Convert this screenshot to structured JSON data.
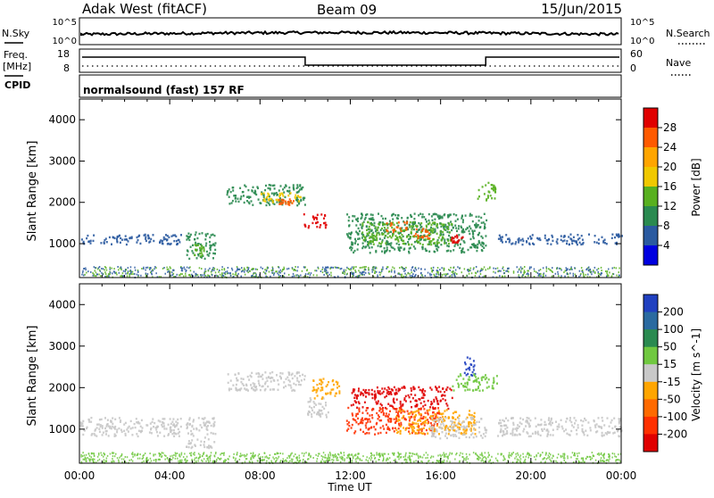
{
  "header": {
    "station": "Adak West (fitACF)",
    "beam": "Beam 09",
    "date": "15/Jun/2015"
  },
  "top_panels": {
    "nsky_label": "N.Sky",
    "nsky_ticks": [
      "10^5",
      "10^0"
    ],
    "nsearch_label": "N.Search",
    "nsearch_ticks": [
      "10^5",
      "10^0"
    ],
    "freq_label_line1": "Freq.",
    "freq_label_line2": "[MHz]",
    "freq_ticks": [
      "18",
      "8"
    ],
    "nave_label": "Nave",
    "nave_ticks": [
      "60",
      "0"
    ],
    "cpid_label": "CPID",
    "cpid_text": "normalsound (fast) 157 RF"
  },
  "chart_data": [
    {
      "type": "heatmap",
      "panel": "power",
      "ylabel": "Slant Range [km]",
      "xlabel": "Time UT",
      "yticks": [
        "4000",
        "3000",
        "2000",
        "1000"
      ],
      "ylim": [
        180,
        4500
      ],
      "xlim_hours": [
        0,
        24
      ],
      "xticks": [
        "00:00",
        "04:00",
        "08:00",
        "12:00",
        "16:00",
        "20:00",
        "00:00"
      ],
      "colorbar": {
        "label": "Power [dB]",
        "ticks": [
          "28",
          "24",
          "20",
          "16",
          "12",
          "8",
          "4"
        ],
        "colors": [
          "#e00000",
          "#ff5a00",
          "#ffa500",
          "#f0c800",
          "#58b020",
          "#2a8a50",
          "#2a5aa0",
          "#0000e0"
        ]
      },
      "blobs": [
        {
          "t0": 4.7,
          "t1": 6.0,
          "r0": 650,
          "r1": 1300,
          "color": "#2a8a50"
        },
        {
          "t0": 5.0,
          "t1": 5.5,
          "r0": 700,
          "r1": 1000,
          "color": "#58b020"
        },
        {
          "t0": 6.5,
          "t1": 10.0,
          "r0": 1950,
          "r1": 2450,
          "color": "#2a8a50"
        },
        {
          "t0": 8.0,
          "t1": 9.8,
          "r0": 2000,
          "r1": 2250,
          "color": "#f0c800"
        },
        {
          "t0": 8.8,
          "t1": 9.5,
          "r0": 1950,
          "r1": 2100,
          "color": "#ff5a00"
        },
        {
          "t0": 9.9,
          "t1": 10.9,
          "r0": 1400,
          "r1": 1750,
          "color": "#e00000"
        },
        {
          "t0": 11.8,
          "t1": 18.0,
          "r0": 800,
          "r1": 1750,
          "color": "#2a8a50"
        },
        {
          "t0": 12.5,
          "t1": 16.5,
          "r0": 1000,
          "r1": 1550,
          "color": "#58b020"
        },
        {
          "t0": 13.5,
          "t1": 14.5,
          "r0": 1300,
          "r1": 1550,
          "color": "#ff5a00"
        },
        {
          "t0": 14.8,
          "t1": 15.5,
          "r0": 1150,
          "r1": 1400,
          "color": "#ff5a00"
        },
        {
          "t0": 16.4,
          "t1": 17.0,
          "r0": 1050,
          "r1": 1250,
          "color": "#e00000"
        },
        {
          "t0": 17.6,
          "t1": 18.4,
          "r0": 2050,
          "r1": 2500,
          "color": "#58b020"
        },
        {
          "t0": 0.0,
          "t1": 4.5,
          "r0": 1000,
          "r1": 1250,
          "color": "#2a5aa0"
        },
        {
          "t0": 18.5,
          "t1": 24.0,
          "r0": 1000,
          "r1": 1250,
          "color": "#2a5aa0"
        }
      ]
    },
    {
      "type": "heatmap",
      "panel": "velocity",
      "ylabel": "Slant Range [km]",
      "xlabel": "Time UT",
      "yticks": [
        "4000",
        "3000",
        "2000",
        "1000"
      ],
      "ylim": [
        180,
        4500
      ],
      "xlim_hours": [
        0,
        24
      ],
      "xticks": [
        "00:00",
        "04:00",
        "08:00",
        "12:00",
        "16:00",
        "20:00",
        "00:00"
      ],
      "colorbar": {
        "label": "Velocity [m s^-1]",
        "ticks": [
          "200",
          "100",
          "50",
          "15",
          "-15",
          "-50",
          "-100",
          "-200"
        ],
        "colors": [
          "#2040c0",
          "#2a6aa0",
          "#2a8a50",
          "#70c840",
          "#c8c8c8",
          "#ffa500",
          "#ff6a00",
          "#ff3000",
          "#e00000"
        ]
      },
      "blobs": [
        {
          "t0": 0.0,
          "t1": 4.5,
          "r0": 850,
          "r1": 1300,
          "color": "#c8c8c8"
        },
        {
          "t0": 4.7,
          "t1": 6.0,
          "r0": 550,
          "r1": 1300,
          "color": "#c8c8c8"
        },
        {
          "t0": 6.5,
          "t1": 10.0,
          "r0": 1950,
          "r1": 2400,
          "color": "#c8c8c8"
        },
        {
          "t0": 10.0,
          "t1": 11.0,
          "r0": 1300,
          "r1": 1800,
          "color": "#c8c8c8"
        },
        {
          "t0": 10.3,
          "t1": 11.5,
          "r0": 1750,
          "r1": 2250,
          "color": "#ffa500"
        },
        {
          "t0": 12.0,
          "t1": 16.5,
          "r0": 1500,
          "r1": 2050,
          "color": "#e00000"
        },
        {
          "t0": 11.8,
          "t1": 16.0,
          "r0": 900,
          "r1": 1550,
          "color": "#ff3000"
        },
        {
          "t0": 14.0,
          "t1": 17.5,
          "r0": 900,
          "r1": 1500,
          "color": "#ffa500"
        },
        {
          "t0": 15.5,
          "t1": 18.0,
          "r0": 800,
          "r1": 1300,
          "color": "#c8c8c8"
        },
        {
          "t0": 17.0,
          "t1": 17.5,
          "r0": 2300,
          "r1": 2800,
          "color": "#2040c0"
        },
        {
          "t0": 16.5,
          "t1": 18.5,
          "r0": 1950,
          "r1": 2350,
          "color": "#70c840"
        },
        {
          "t0": 18.5,
          "t1": 24.0,
          "r0": 850,
          "r1": 1300,
          "color": "#c8c8c8"
        }
      ]
    }
  ]
}
